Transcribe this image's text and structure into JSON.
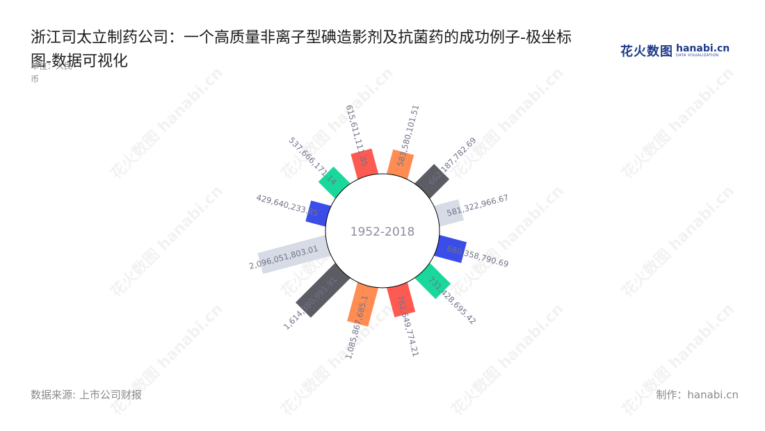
{
  "header": {
    "title": "浙江司太立制药公司：一个高质量非离子型碘造影剂及抗菌药的成功例子-极坐标图-数据可视化",
    "unit": "单位：人民币"
  },
  "logo": {
    "cn": "花火数图",
    "en": "hanabi.cn",
    "en_sub": "DATA VISUALIZATION"
  },
  "watermark": "花火数图 hanabi.cn",
  "footer": {
    "source": "数据来源: 上市公司财报",
    "maker": "制作：hanabi.cn"
  },
  "chart_data": {
    "type": "bar",
    "polar": true,
    "center_label": "1952-2018",
    "labels": [
      "583,580,101.51",
      "662,187,782.69",
      "581,322,966.67",
      "680,358,790.69",
      "731,428,695.42",
      "762,649,774.21",
      "1,085,867,685.1",
      "1,614,380,991.91",
      "2,096,051,803.01",
      "429,640,233.85",
      "537,666,171.14",
      "615,611,111.85"
    ],
    "values": [
      583580101.51,
      662187782.69,
      581322966.67,
      680358790.69,
      731428695.42,
      762649774.21,
      1085867685.1,
      1614380991.91,
      2096051803.01,
      429640233.85,
      537666171.14,
      615611111.85
    ],
    "colors": [
      "#ff8c52",
      "#5b5c64",
      "#d7dbe6",
      "#3a4de8",
      "#1ad89b",
      "#fd5b52"
    ]
  }
}
